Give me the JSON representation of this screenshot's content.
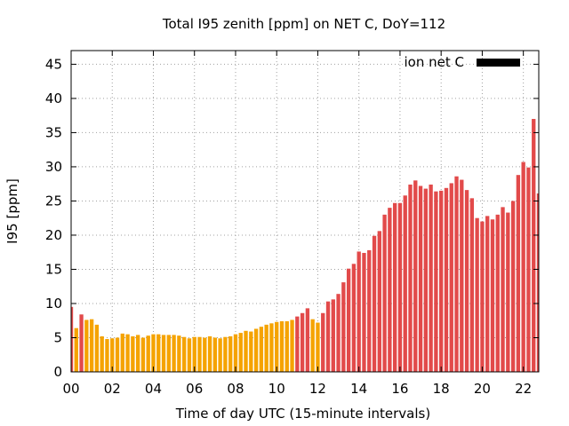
{
  "chart_data": {
    "type": "bar",
    "title": "Total I95 zenith [ppm] on NET C, DoY=112",
    "xlabel": "Time of day UTC (15-minute intervals)",
    "ylabel": "I95 [ppm]",
    "xlim": [
      0,
      22.75
    ],
    "ylim": [
      0,
      47
    ],
    "x_ticks": [
      0,
      2,
      4,
      6,
      8,
      10,
      12,
      14,
      16,
      18,
      20,
      22
    ],
    "x_tick_labels": [
      "00",
      "02",
      "04",
      "06",
      "08",
      "10",
      "12",
      "14",
      "16",
      "18",
      "20",
      "22"
    ],
    "y_ticks": [
      0,
      5,
      10,
      15,
      20,
      25,
      30,
      35,
      40,
      45
    ],
    "y_tick_labels": [
      "0",
      "5",
      "10",
      "15",
      "20",
      "25",
      "30",
      "35",
      "40",
      "45"
    ],
    "grid": true,
    "legend_position": "top-right",
    "series": [
      {
        "name": "ion net C",
        "legend_color": "#000000",
        "x_step_hours": 0.25,
        "values": [
          9.5,
          6.4,
          8.4,
          7.6,
          7.7,
          6.9,
          5.2,
          4.8,
          4.9,
          5.0,
          5.6,
          5.5,
          5.2,
          5.4,
          5.0,
          5.3,
          5.5,
          5.5,
          5.4,
          5.4,
          5.4,
          5.3,
          5.1,
          4.9,
          5.1,
          5.1,
          5.0,
          5.2,
          5.0,
          4.9,
          5.1,
          5.2,
          5.5,
          5.7,
          6.0,
          5.9,
          6.3,
          6.6,
          6.9,
          7.1,
          7.3,
          7.4,
          7.4,
          7.6,
          8.1,
          8.6,
          9.3,
          7.7,
          7.2,
          8.6,
          10.3,
          10.6,
          11.4,
          13.1,
          15.1,
          15.8,
          17.6,
          17.4,
          17.8,
          19.9,
          20.6,
          23.0,
          24.0,
          24.7,
          24.7,
          25.8,
          27.4,
          28.0,
          27.2,
          26.8,
          27.4,
          26.4,
          26.5,
          26.9,
          27.6,
          28.6,
          28.1,
          26.6,
          25.4,
          22.5,
          22.0,
          22.8,
          22.3,
          23.0,
          24.1,
          23.3,
          25.0,
          28.8,
          30.7,
          29.9,
          37.0,
          26.1
        ],
        "bar_colors": [
          {
            "from": 0,
            "to": 0,
            "color": "#e24a4a"
          },
          {
            "from": 1,
            "to": 1,
            "color": "#f5a300"
          },
          {
            "from": 2,
            "to": 2,
            "color": "#e24a4a"
          },
          {
            "from": 3,
            "to": 43,
            "color": "#f5a300"
          },
          {
            "from": 44,
            "to": 46,
            "color": "#e24a4a"
          },
          {
            "from": 47,
            "to": 48,
            "color": "#f5a300"
          },
          {
            "from": 49,
            "to": 91,
            "color": "#e24a4a"
          }
        ]
      }
    ]
  }
}
